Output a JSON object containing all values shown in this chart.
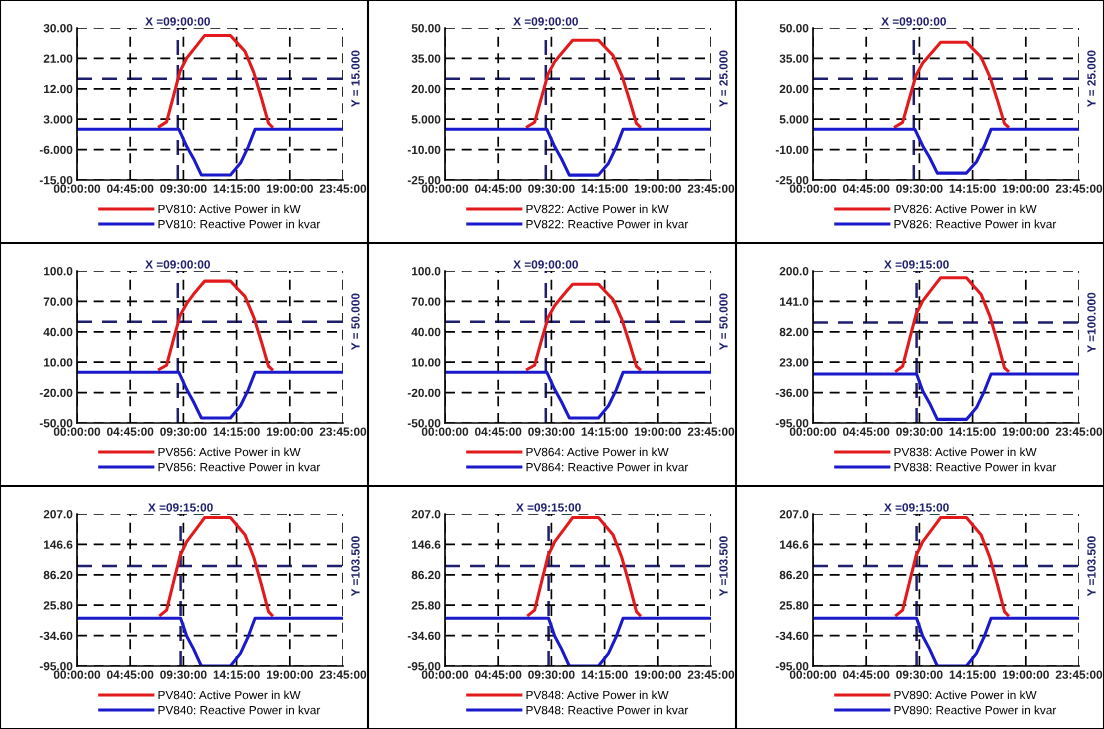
{
  "chart_data": [
    {
      "type": "line",
      "xlim": [
        0,
        23.75
      ],
      "xticks": [
        {
          "value": 0,
          "label": "00:00:00"
        },
        {
          "value": 4.75,
          "label": "04:45:00"
        },
        {
          "value": 9.5,
          "label": "09:30:00"
        },
        {
          "value": 14.25,
          "label": "14:15:00"
        },
        {
          "value": 19,
          "label": "19:00:00"
        },
        {
          "value": 23.75,
          "label": "23:45:00"
        }
      ],
      "ylim": [
        -15,
        30
      ],
      "yticks": [
        {
          "value": -15,
          "label": "-15.00"
        },
        {
          "value": -6,
          "label": "-6.000"
        },
        {
          "value": 3,
          "label": "3.000"
        },
        {
          "value": 12,
          "label": "12.00"
        },
        {
          "value": 21,
          "label": "21.00"
        },
        {
          "value": 30,
          "label": "30.00"
        }
      ],
      "grid": true,
      "legend": "bottom",
      "line_style": "solid",
      "ref_lines": [
        {
          "axis": "x",
          "value": 9,
          "label": "X =09:00:00",
          "color": "#1f1f6e",
          "line_style": "dashed"
        },
        {
          "axis": "y",
          "value": 15,
          "label": "Y = 15.000",
          "color": "#1f1f6e",
          "line_style": "dashed"
        }
      ],
      "series": [
        {
          "name": "PV810: Active Power in kW",
          "color": "#e31a1c",
          "x": [
            7.35,
            8.0,
            8.6,
            9.2,
            9.8,
            10.4,
            11.0,
            11.4,
            13.7,
            14.3,
            15.0,
            15.8,
            16.5,
            17.1,
            17.4
          ],
          "values": [
            0.8,
            2.2,
            9.7,
            17.2,
            21.1,
            23.6,
            26.1,
            27.8,
            27.8,
            25.6,
            23.1,
            16.7,
            8.9,
            1.8,
            0.8
          ]
        },
        {
          "name": "PV810: Reactive Power in kvar",
          "color": "#1a1acc",
          "x": [
            0,
            9.1,
            9.8,
            10.4,
            11.1,
            13.7,
            14.6,
            15.3,
            15.9,
            23.75
          ],
          "values": [
            0,
            0,
            -5.1,
            -8.6,
            -13.5,
            -13.5,
            -10,
            -5.1,
            0,
            0
          ]
        }
      ]
    },
    {
      "type": "line",
      "xlim": [
        0,
        23.75
      ],
      "xticks": [
        {
          "value": 0,
          "label": "00:00:00"
        },
        {
          "value": 4.75,
          "label": "04:45:00"
        },
        {
          "value": 9.5,
          "label": "09:30:00"
        },
        {
          "value": 14.25,
          "label": "14:15:00"
        },
        {
          "value": 19,
          "label": "19:00:00"
        },
        {
          "value": 23.75,
          "label": "23:45:00"
        }
      ],
      "ylim": [
        -25,
        50
      ],
      "yticks": [
        {
          "value": -25,
          "label": "-25.00"
        },
        {
          "value": -10,
          "label": "-10.00"
        },
        {
          "value": 5,
          "label": "5.000"
        },
        {
          "value": 20,
          "label": "20.00"
        },
        {
          "value": 35,
          "label": "35.00"
        },
        {
          "value": 50,
          "label": "50.00"
        }
      ],
      "grid": true,
      "legend": "bottom",
      "line_style": "solid",
      "ref_lines": [
        {
          "axis": "x",
          "value": 9,
          "label": "X =09:00:00",
          "color": "#1f1f6e",
          "line_style": "dashed"
        },
        {
          "axis": "y",
          "value": 25,
          "label": "Y = 25.000",
          "color": "#1f1f6e",
          "line_style": "dashed"
        }
      ],
      "series": [
        {
          "name": "PV822: Active Power in kW",
          "color": "#e31a1c",
          "x": [
            7.35,
            8.0,
            8.6,
            9.2,
            9.8,
            10.4,
            11.0,
            11.4,
            13.7,
            14.3,
            15.0,
            15.8,
            16.5,
            17.1,
            17.4
          ],
          "values": [
            1.3,
            3.5,
            15.4,
            27.3,
            33.4,
            37.4,
            41.4,
            44,
            44,
            40.5,
            36.5,
            26.4,
            14.1,
            2.9,
            1.3
          ]
        },
        {
          "name": "PV822: Reactive Power in kvar",
          "color": "#1a1acc",
          "x": [
            0,
            9.1,
            9.8,
            10.4,
            11.1,
            13.7,
            14.6,
            15.3,
            15.9,
            23.75
          ],
          "values": [
            0,
            0,
            -8.6,
            -14.5,
            -22.6,
            -22.6,
            -16.7,
            -8.6,
            0,
            0
          ]
        }
      ]
    },
    {
      "type": "line",
      "xlim": [
        0,
        23.75
      ],
      "xticks": [
        {
          "value": 0,
          "label": "00:00:00"
        },
        {
          "value": 4.75,
          "label": "04:45:00"
        },
        {
          "value": 9.5,
          "label": "09:30:00"
        },
        {
          "value": 14.25,
          "label": "14:15:00"
        },
        {
          "value": 19,
          "label": "19:00:00"
        },
        {
          "value": 23.75,
          "label": "23:45:00"
        }
      ],
      "ylim": [
        -25,
        50
      ],
      "yticks": [
        {
          "value": -25,
          "label": "-25.00"
        },
        {
          "value": -10,
          "label": "-10.00"
        },
        {
          "value": 5,
          "label": "5.000"
        },
        {
          "value": 20,
          "label": "20.00"
        },
        {
          "value": 35,
          "label": "35.00"
        },
        {
          "value": 50,
          "label": "50.00"
        }
      ],
      "grid": true,
      "legend": "bottom",
      "line_style": "solid",
      "ref_lines": [
        {
          "axis": "x",
          "value": 9,
          "label": "X =09:00:00",
          "color": "#1f1f6e",
          "line_style": "dashed"
        },
        {
          "axis": "y",
          "value": 25,
          "label": "Y = 25.000",
          "color": "#1f1f6e",
          "line_style": "dashed"
        }
      ],
      "series": [
        {
          "name": "PV826: Active Power in kW",
          "color": "#e31a1c",
          "x": [
            7.35,
            8.0,
            8.6,
            9.2,
            9.8,
            10.4,
            11.0,
            11.4,
            13.7,
            14.3,
            15.0,
            15.8,
            16.5,
            17.1,
            17.4
          ],
          "values": [
            1.3,
            3.4,
            15.1,
            26.7,
            32.7,
            36.6,
            40.4,
            43,
            43,
            39.6,
            35.7,
            25.8,
            13.8,
            2.8,
            1.3
          ]
        },
        {
          "name": "PV826: Reactive Power in kvar",
          "color": "#1a1acc",
          "x": [
            0,
            9.1,
            9.8,
            10.4,
            11.1,
            13.7,
            14.6,
            15.3,
            15.9,
            23.75
          ],
          "values": [
            0,
            0,
            -8.2,
            -13.8,
            -21.6,
            -21.6,
            -16,
            -8.2,
            0,
            0
          ]
        }
      ]
    },
    {
      "type": "line",
      "xlim": [
        0,
        23.75
      ],
      "xticks": [
        {
          "value": 0,
          "label": "00:00:00"
        },
        {
          "value": 4.75,
          "label": "04:45:00"
        },
        {
          "value": 9.5,
          "label": "09:30:00"
        },
        {
          "value": 14.25,
          "label": "14:15:00"
        },
        {
          "value": 19,
          "label": "19:00:00"
        },
        {
          "value": 23.75,
          "label": "23:45:00"
        }
      ],
      "ylim": [
        -50,
        100
      ],
      "yticks": [
        {
          "value": -50,
          "label": "-50.00"
        },
        {
          "value": -20,
          "label": "-20.00"
        },
        {
          "value": 10,
          "label": "10.00"
        },
        {
          "value": 40,
          "label": "40.00"
        },
        {
          "value": 70,
          "label": "70.00"
        },
        {
          "value": 100,
          "label": "100.0"
        }
      ],
      "grid": true,
      "legend": "bottom",
      "line_style": "solid",
      "ref_lines": [
        {
          "axis": "x",
          "value": 9,
          "label": "X =09:00:00",
          "color": "#1f1f6e",
          "line_style": "dashed"
        },
        {
          "axis": "y",
          "value": 50,
          "label": "Y = 50.000",
          "color": "#1f1f6e",
          "line_style": "dashed"
        }
      ],
      "series": [
        {
          "name": "PV856: Active Power in kW",
          "color": "#e31a1c",
          "x": [
            7.35,
            8.0,
            8.6,
            9.2,
            9.8,
            10.4,
            11.0,
            11.4,
            13.7,
            14.3,
            15.0,
            15.8,
            16.5,
            17.1,
            17.4
          ],
          "values": [
            3,
            7,
            32,
            56,
            68,
            77,
            85,
            90,
            90,
            83,
            75,
            54,
            29,
            6,
            3
          ]
        },
        {
          "name": "PV856: Reactive Power in kvar",
          "color": "#1a1acc",
          "x": [
            0,
            9.1,
            9.8,
            10.4,
            11.1,
            13.7,
            14.6,
            15.3,
            15.9,
            23.75
          ],
          "values": [
            0,
            0,
            -17,
            -29,
            -45,
            -45,
            -33,
            -17,
            0,
            0
          ]
        }
      ]
    },
    {
      "type": "line",
      "xlim": [
        0,
        23.75
      ],
      "xticks": [
        {
          "value": 0,
          "label": "00:00:00"
        },
        {
          "value": 4.75,
          "label": "04:45:00"
        },
        {
          "value": 9.5,
          "label": "09:30:00"
        },
        {
          "value": 14.25,
          "label": "14:15:00"
        },
        {
          "value": 19,
          "label": "19:00:00"
        },
        {
          "value": 23.75,
          "label": "23:45:00"
        }
      ],
      "ylim": [
        -50,
        100
      ],
      "yticks": [
        {
          "value": -50,
          "label": "-50.00"
        },
        {
          "value": -20,
          "label": "-20.00"
        },
        {
          "value": 10,
          "label": "10.00"
        },
        {
          "value": 40,
          "label": "40.00"
        },
        {
          "value": 70,
          "label": "70.00"
        },
        {
          "value": 100,
          "label": "100.0"
        }
      ],
      "grid": true,
      "legend": "bottom",
      "line_style": "solid",
      "ref_lines": [
        {
          "axis": "x",
          "value": 9,
          "label": "X =09:00:00",
          "color": "#1f1f6e",
          "line_style": "dashed"
        },
        {
          "axis": "y",
          "value": 50,
          "label": "Y = 50.000",
          "color": "#1f1f6e",
          "line_style": "dashed"
        }
      ],
      "series": [
        {
          "name": "PV864: Active Power in kW",
          "color": "#e31a1c",
          "x": [
            7.35,
            8.0,
            8.6,
            9.2,
            9.8,
            10.4,
            11.0,
            11.4,
            13.7,
            14.3,
            15.0,
            15.8,
            16.5,
            17.1,
            17.4
          ],
          "values": [
            3,
            7,
            31,
            54,
            66,
            74,
            82,
            87,
            87,
            80,
            72,
            52,
            28,
            6,
            3
          ]
        },
        {
          "name": "PV864: Reactive Power in kvar",
          "color": "#1a1acc",
          "x": [
            0,
            9.1,
            9.8,
            10.4,
            11.1,
            13.7,
            14.6,
            15.3,
            15.9,
            23.75
          ],
          "values": [
            0,
            0,
            -17,
            -29,
            -45,
            -45,
            -33,
            -17,
            0,
            0
          ]
        }
      ]
    },
    {
      "type": "line",
      "xlim": [
        0,
        23.75
      ],
      "xticks": [
        {
          "value": 0,
          "label": "00:00:00"
        },
        {
          "value": 4.75,
          "label": "04:45:00"
        },
        {
          "value": 9.5,
          "label": "09:30:00"
        },
        {
          "value": 14.25,
          "label": "14:15:00"
        },
        {
          "value": 19,
          "label": "19:00:00"
        },
        {
          "value": 23.75,
          "label": "23:45:00"
        }
      ],
      "ylim": [
        -95,
        200
      ],
      "yticks": [
        {
          "value": -95,
          "label": "-95.00"
        },
        {
          "value": -36,
          "label": "-36.00"
        },
        {
          "value": 23,
          "label": "23.00"
        },
        {
          "value": 82,
          "label": "82.00"
        },
        {
          "value": 141,
          "label": "141.0"
        },
        {
          "value": 200,
          "label": "200.0"
        }
      ],
      "grid": true,
      "legend": "bottom",
      "line_style": "solid",
      "ref_lines": [
        {
          "axis": "x",
          "value": 9.25,
          "label": "X =09:15:00",
          "color": "#1f1f6e",
          "line_style": "dashed"
        },
        {
          "axis": "y",
          "value": 100,
          "label": "Y =100.000",
          "color": "#1f1f6e",
          "line_style": "dashed"
        }
      ],
      "series": [
        {
          "name": "PV838: Active Power in kW",
          "color": "#e31a1c",
          "x": [
            7.45,
            8.0,
            8.6,
            9.2,
            9.8,
            10.4,
            11.0,
            11.4,
            13.7,
            14.3,
            15.0,
            15.8,
            16.5,
            17.1,
            17.4
          ],
          "values": [
            6,
            15,
            66,
            116,
            142,
            159,
            176,
            187,
            187,
            172,
            155,
            112,
            60,
            12,
            6
          ]
        },
        {
          "name": "PV838: Reactive Power in kvar",
          "color": "#1a1acc",
          "x": [
            0,
            9.25,
            9.8,
            10.4,
            11.1,
            13.7,
            14.6,
            15.3,
            15.9,
            23.75
          ],
          "values": [
            0,
            0,
            -33,
            -56,
            -88,
            -88,
            -65,
            -33,
            0,
            0
          ]
        }
      ]
    },
    {
      "type": "line",
      "xlim": [
        0,
        23.75
      ],
      "xticks": [
        {
          "value": 0,
          "label": "00:00:00"
        },
        {
          "value": 4.75,
          "label": "04:45:00"
        },
        {
          "value": 9.5,
          "label": "09:30:00"
        },
        {
          "value": 14.25,
          "label": "14:15:00"
        },
        {
          "value": 19,
          "label": "19:00:00"
        },
        {
          "value": 23.75,
          "label": "23:45:00"
        }
      ],
      "ylim": [
        -95,
        207
      ],
      "yticks": [
        {
          "value": -95,
          "label": "-95.00"
        },
        {
          "value": -34.6,
          "label": "-34.60"
        },
        {
          "value": 25.8,
          "label": "25.80"
        },
        {
          "value": 86.2,
          "label": "86.20"
        },
        {
          "value": 146.6,
          "label": "146.6"
        },
        {
          "value": 207,
          "label": "207.0"
        }
      ],
      "grid": true,
      "legend": "bottom",
      "line_style": "solid",
      "ref_lines": [
        {
          "axis": "x",
          "value": 9.25,
          "label": "X =09:15:00",
          "color": "#1f1f6e",
          "line_style": "dashed"
        },
        {
          "axis": "y",
          "value": 103.5,
          "label": "Y =103.500",
          "color": "#1f1f6e",
          "line_style": "dashed"
        }
      ],
      "series": [
        {
          "name": "PV840: Active Power in kW",
          "color": "#e31a1c",
          "x": [
            7.45,
            8.0,
            8.6,
            9.2,
            9.8,
            10.4,
            11.0,
            11.4,
            13.7,
            14.3,
            15.0,
            15.8,
            16.5,
            17.1,
            17.4
          ],
          "values": [
            6,
            16,
            70,
            124,
            152,
            170,
            188,
            200,
            200,
            184,
            166,
            120,
            64,
            13,
            6
          ]
        },
        {
          "name": "PV840: Reactive Power in kvar",
          "color": "#1a1acc",
          "x": [
            0,
            9.25,
            9.8,
            10.4,
            11.1,
            13.7,
            14.6,
            15.3,
            15.9,
            23.75
          ],
          "values": [
            0,
            0,
            -36,
            -61,
            -95,
            -95,
            -70,
            -36,
            0,
            0
          ]
        }
      ]
    },
    {
      "type": "line",
      "xlim": [
        0,
        23.75
      ],
      "xticks": [
        {
          "value": 0,
          "label": "00:00:00"
        },
        {
          "value": 4.75,
          "label": "04:45:00"
        },
        {
          "value": 9.5,
          "label": "09:30:00"
        },
        {
          "value": 14.25,
          "label": "14:15:00"
        },
        {
          "value": 19,
          "label": "19:00:00"
        },
        {
          "value": 23.75,
          "label": "23:45:00"
        }
      ],
      "ylim": [
        -95,
        207
      ],
      "yticks": [
        {
          "value": -95,
          "label": "-95.00"
        },
        {
          "value": -34.6,
          "label": "-34.60"
        },
        {
          "value": 25.8,
          "label": "25.80"
        },
        {
          "value": 86.2,
          "label": "86.20"
        },
        {
          "value": 146.6,
          "label": "146.6"
        },
        {
          "value": 207,
          "label": "207.0"
        }
      ],
      "grid": true,
      "legend": "bottom",
      "line_style": "solid",
      "ref_lines": [
        {
          "axis": "x",
          "value": 9.25,
          "label": "X =09:15:00",
          "color": "#1f1f6e",
          "line_style": "dashed"
        },
        {
          "axis": "y",
          "value": 103.5,
          "label": "Y =103.500",
          "color": "#1f1f6e",
          "line_style": "dashed"
        }
      ],
      "series": [
        {
          "name": "PV848: Active Power in kW",
          "color": "#e31a1c",
          "x": [
            7.45,
            8.0,
            8.6,
            9.2,
            9.8,
            10.4,
            11.0,
            11.4,
            13.7,
            14.3,
            15.0,
            15.8,
            16.5,
            17.1,
            17.4
          ],
          "values": [
            6,
            16,
            70,
            124,
            152,
            170,
            188,
            200,
            200,
            184,
            166,
            120,
            64,
            13,
            6
          ]
        },
        {
          "name": "PV848: Reactive Power in kvar",
          "color": "#1a1acc",
          "x": [
            0,
            9.25,
            9.8,
            10.4,
            11.1,
            13.7,
            14.6,
            15.3,
            15.9,
            23.75
          ],
          "values": [
            0,
            0,
            -36,
            -61,
            -95,
            -95,
            -70,
            -36,
            0,
            0
          ]
        }
      ]
    },
    {
      "type": "line",
      "xlim": [
        0,
        23.75
      ],
      "xticks": [
        {
          "value": 0,
          "label": "00:00:00"
        },
        {
          "value": 4.75,
          "label": "04:45:00"
        },
        {
          "value": 9.5,
          "label": "09:30:00"
        },
        {
          "value": 14.25,
          "label": "14:15:00"
        },
        {
          "value": 19,
          "label": "19:00:00"
        },
        {
          "value": 23.75,
          "label": "23:45:00"
        }
      ],
      "ylim": [
        -95,
        207
      ],
      "yticks": [
        {
          "value": -95,
          "label": "-95.00"
        },
        {
          "value": -34.6,
          "label": "-34.60"
        },
        {
          "value": 25.8,
          "label": "25.80"
        },
        {
          "value": 86.2,
          "label": "86.20"
        },
        {
          "value": 146.6,
          "label": "146.6"
        },
        {
          "value": 207,
          "label": "207.0"
        }
      ],
      "grid": true,
      "legend": "bottom",
      "line_style": "solid",
      "ref_lines": [
        {
          "axis": "x",
          "value": 9.25,
          "label": "X =09:15:00",
          "color": "#1f1f6e",
          "line_style": "dashed"
        },
        {
          "axis": "y",
          "value": 103.5,
          "label": "Y =103.500",
          "color": "#1f1f6e",
          "line_style": "dashed"
        }
      ],
      "series": [
        {
          "name": "PV890: Active Power in kW",
          "color": "#e31a1c",
          "x": [
            7.45,
            8.0,
            8.6,
            9.2,
            9.8,
            10.4,
            11.0,
            11.4,
            13.7,
            14.3,
            15.0,
            15.8,
            16.5,
            17.1,
            17.4
          ],
          "values": [
            6,
            16,
            70,
            124,
            152,
            170,
            188,
            200,
            200,
            184,
            166,
            120,
            64,
            13,
            6
          ]
        },
        {
          "name": "PV890: Reactive Power in kvar",
          "color": "#1a1acc",
          "x": [
            0,
            9.25,
            9.8,
            10.4,
            11.1,
            13.7,
            14.6,
            15.3,
            15.9,
            23.75
          ],
          "values": [
            0,
            0,
            -36,
            -61,
            -95,
            -95,
            -70,
            -36,
            0,
            0
          ]
        }
      ]
    }
  ]
}
